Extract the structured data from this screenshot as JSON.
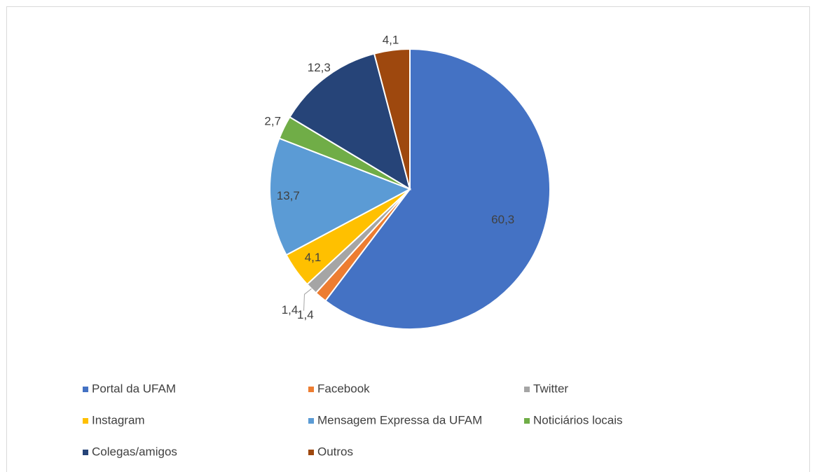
{
  "chart_data": {
    "type": "pie",
    "categories": [
      "Portal da UFAM",
      "Facebook",
      "Twitter",
      "Instagram",
      "Mensagem Expressa da UFAM",
      "Noticiários locais",
      "Colegas/amigos",
      "Outros"
    ],
    "values": [
      60.3,
      1.4,
      1.4,
      4.1,
      13.7,
      2.7,
      12.3,
      4.1
    ],
    "value_labels": [
      "60,3",
      "1,4",
      "1,4",
      "4,1",
      "13,7",
      "2,7",
      "12,3",
      "4,1"
    ],
    "colors": [
      "#4472c4",
      "#ed7d31",
      "#a5a5a5",
      "#ffc000",
      "#5b9bd5",
      "#70ad47",
      "#264478",
      "#9e480e"
    ],
    "legend": "bottom"
  }
}
